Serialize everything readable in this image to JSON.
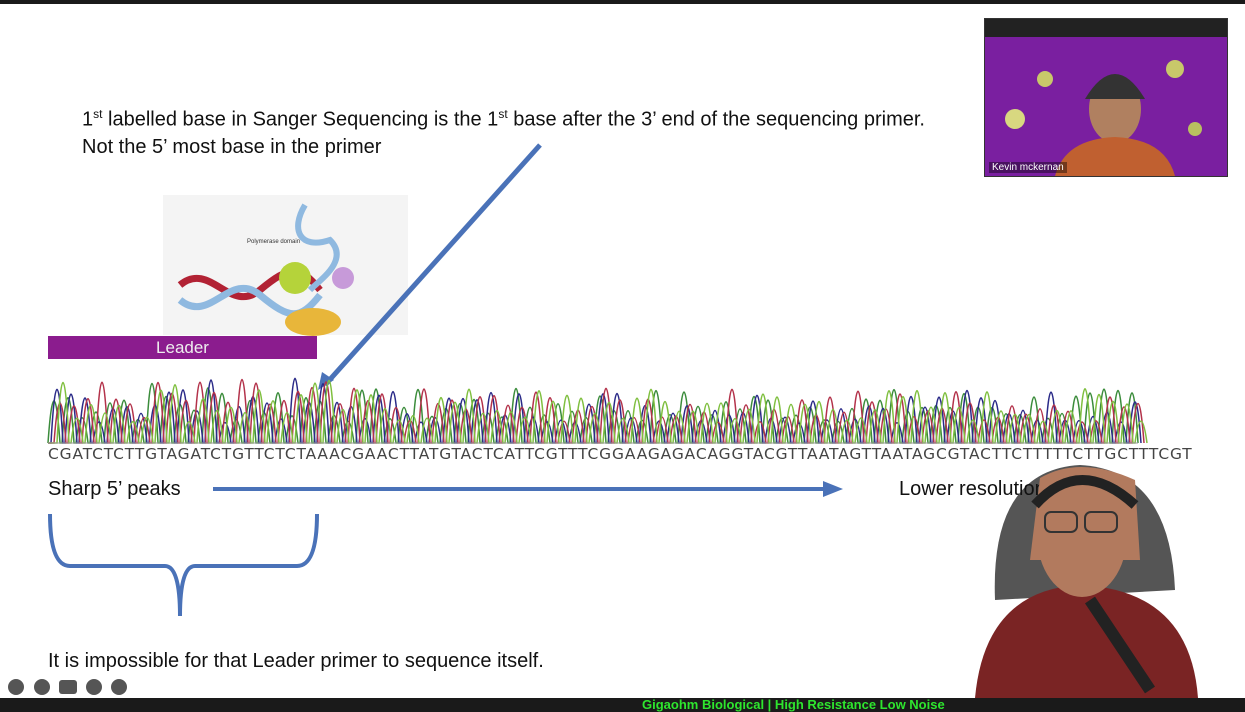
{
  "slide": {
    "headline": {
      "parts": [
        "1",
        "st",
        " labelled base in Sanger Sequencing is the 1",
        "st",
        " base after the 3’ end of the sequencing primer."
      ]
    },
    "subline": "Not the 5’ most base in the primer",
    "diagram_label": "Polymerase domain",
    "leader_label": "Leader",
    "sequence": "CGATCTCTTGTAGATCTGTTCTCTAAACGAACTTATGTACTCATTCGTTTCGGAAGAGACAGGTACGTTAATAGTTAATAGCGTACTTCTTTTTCTTGCTTTCGT",
    "left_caption": "Sharp 5’ peaks",
    "right_caption": "Lower resolution peaks",
    "bottom_caption": "It is impossible for that Leader primer to sequence itself."
  },
  "webcam": {
    "name": "Kevin mckernan"
  },
  "banner": "Gigaohm Biological | High Resistance Low Noise"
}
